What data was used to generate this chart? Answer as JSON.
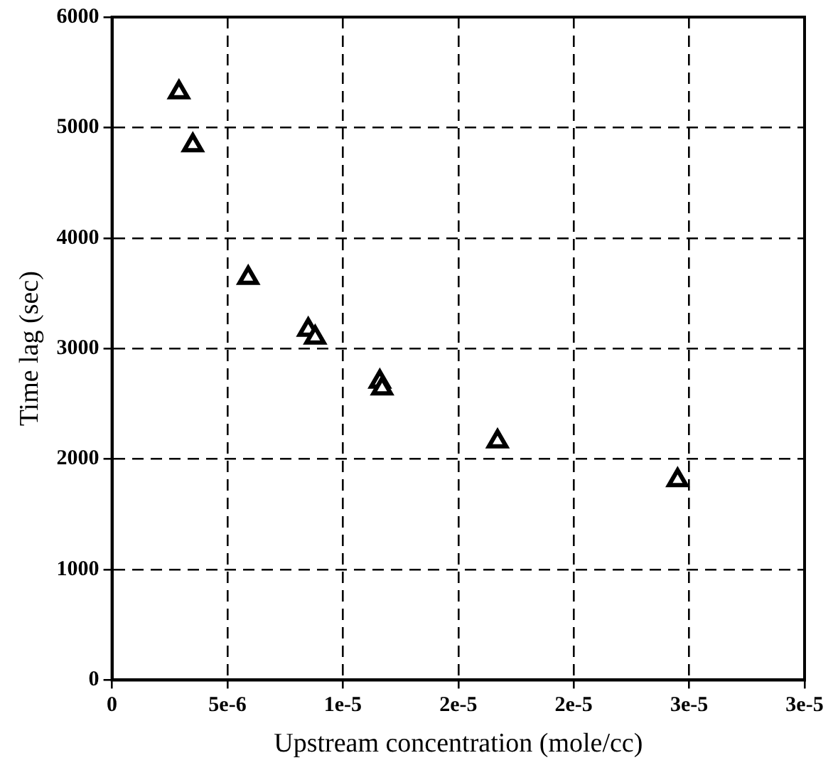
{
  "chart_data": {
    "type": "scatter",
    "xlabel": "Upstream concentration (mole/cc)",
    "ylabel": "Time lag (sec)",
    "x": [
      2.9e-06,
      3.5e-06,
      5.9e-06,
      8.5e-06,
      8.8e-06,
      1.16e-05,
      1.17e-05,
      1.67e-05,
      2.45e-05
    ],
    "values": [
      5320,
      4840,
      3640,
      3170,
      3100,
      2700,
      2640,
      2160,
      1810
    ],
    "color": "#000000",
    "marker": "triangle",
    "grid": true,
    "xlim": [
      0,
      3e-05
    ],
    "xticks": [
      0,
      {
        "value": 5e-06,
        "label": "5e-6"
      },
      {
        "value": 1e-05,
        "label": "1e-5"
      },
      {
        "value": 1.5e-05,
        "label": "2e-5"
      },
      {
        "value": 2e-05,
        "label": "2e-5"
      },
      {
        "value": 2.5e-05,
        "label": "3e-5"
      },
      {
        "value": 3e-05,
        "label": "3e-5"
      }
    ],
    "ylim": [
      0,
      6000
    ],
    "yticks": [
      0,
      1000,
      2000,
      3000,
      4000,
      5000,
      6000
    ]
  }
}
